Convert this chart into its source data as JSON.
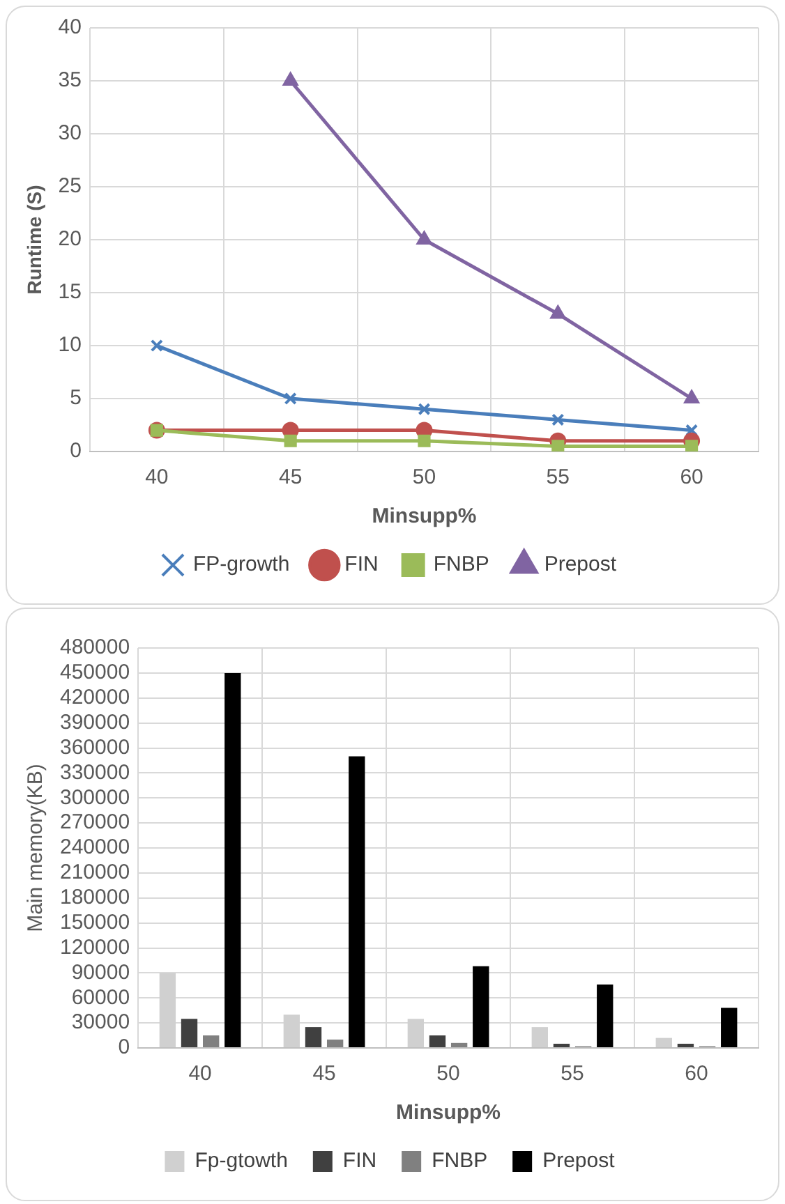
{
  "chart_data": [
    {
      "type": "line",
      "xlabel": "Minsupp%",
      "ylabel": "Runtime (S)",
      "categories": [
        "40",
        "45",
        "50",
        "55",
        "60"
      ],
      "series": [
        {
          "name": "FP-growth",
          "color": "#4a7ebb",
          "marker": "cross",
          "values": [
            10,
            5,
            4,
            3,
            2
          ]
        },
        {
          "name": "FIN",
          "color": "#c0504d",
          "marker": "circle",
          "values": [
            2,
            2,
            2,
            1,
            1
          ]
        },
        {
          "name": "FNBP",
          "color": "#9bbb59",
          "marker": "square",
          "values": [
            2,
            1,
            1,
            0.5,
            0.5
          ]
        },
        {
          "name": "Prepost",
          "color": "#8064a2",
          "marker": "triangle",
          "values": [
            null,
            35,
            20,
            13,
            5
          ]
        }
      ],
      "ylim": [
        0,
        40
      ],
      "yticks": [
        0,
        5,
        10,
        15,
        20,
        25,
        30,
        35,
        40
      ],
      "grid": true,
      "legend": "bottom",
      "line_style": "solid"
    },
    {
      "type": "bar",
      "xlabel": "Minsupp%",
      "ylabel": "Main memory(KB)",
      "categories": [
        "40",
        "45",
        "50",
        "55",
        "60"
      ],
      "series": [
        {
          "name": "Fp-gtowth",
          "color": "#d0d0d0",
          "values": [
            90000,
            40000,
            35000,
            25000,
            12000
          ]
        },
        {
          "name": "FIN",
          "color": "#404040",
          "values": [
            35000,
            25000,
            15000,
            5000,
            5000
          ]
        },
        {
          "name": "FNBP",
          "color": "#808080",
          "values": [
            15000,
            10000,
            6000,
            2000,
            2000
          ]
        },
        {
          "name": "Prepost",
          "color": "#000000",
          "values": [
            450000,
            350000,
            98000,
            76000,
            48000
          ]
        }
      ],
      "ylim": [
        0,
        480000
      ],
      "yticks": [
        0,
        30000,
        60000,
        90000,
        120000,
        150000,
        180000,
        210000,
        240000,
        270000,
        300000,
        330000,
        360000,
        390000,
        420000,
        450000,
        480000
      ],
      "grid": true,
      "legend": "bottom"
    }
  ]
}
